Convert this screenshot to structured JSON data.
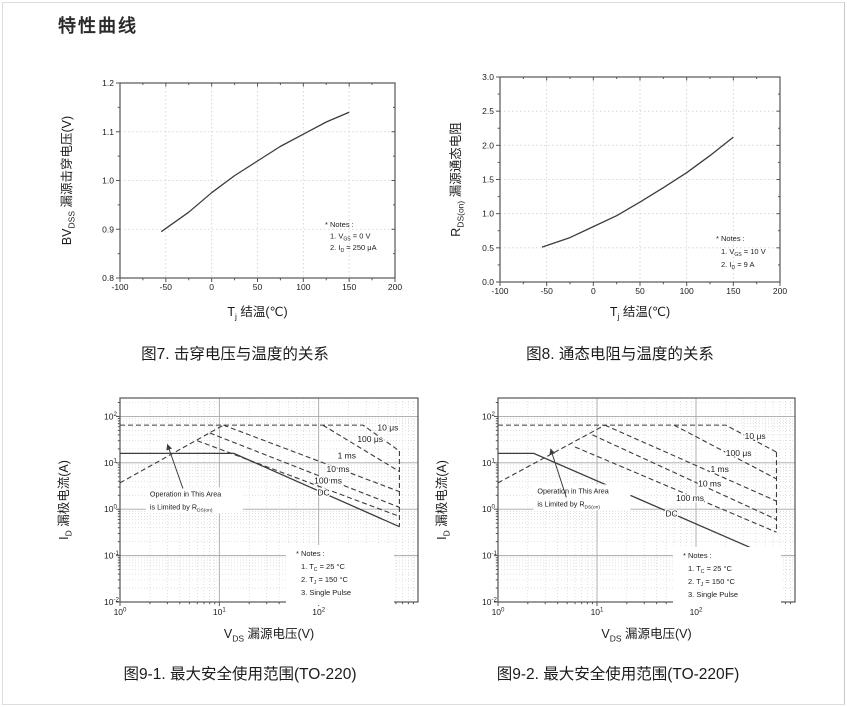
{
  "page": {
    "title": "特性曲线"
  },
  "colors": {
    "curve": "#3c3c3c",
    "frame": "#555555",
    "grid_major": "#a8a8a8",
    "grid_minor": "#cfcfcf",
    "text": "#1c1c1c"
  },
  "chart_data": [
    {
      "id": "fig7",
      "type": "line",
      "caption": "图7. 击穿电压与温度的关系",
      "xlabel": {
        "t": "T",
        "s": "j",
        "r": " 结温(℃)"
      },
      "ylabel": {
        "t": "BV",
        "s": "DSS",
        "r": " 漏源击穿电压(V)"
      },
      "xlim": [
        -100,
        200
      ],
      "ylim": [
        0.8,
        1.2
      ],
      "xticks": [
        -100,
        -50,
        0,
        50,
        100,
        150,
        200
      ],
      "ytick_labels": [
        "0.8",
        "0.9",
        "1.0",
        "1.1",
        "1.2"
      ],
      "yticks": [
        0.8,
        0.9,
        1.0,
        1.1,
        1.2
      ],
      "x": [
        -55,
        -25,
        0,
        25,
        50,
        75,
        100,
        125,
        150
      ],
      "y": [
        0.895,
        0.935,
        0.975,
        1.01,
        1.04,
        1.07,
        1.095,
        1.12,
        1.14
      ],
      "notes": [
        {
          "t": "* Notes :"
        },
        {
          "t": "1. V",
          "s": "GS",
          "r": " = 0 V"
        },
        {
          "t": "2. I",
          "s": "D",
          "r": " = 250 μA"
        }
      ]
    },
    {
      "id": "fig8",
      "type": "line",
      "caption": "图8. 通态电阻与温度的关系",
      "xlabel": {
        "t": "T",
        "s": "j",
        "r": " 结温(℃)"
      },
      "ylabel": {
        "t": "R",
        "s": "DS(on)",
        "r": " 漏源通态电阻"
      },
      "xlim": [
        -100,
        200
      ],
      "ylim": [
        0,
        3
      ],
      "xticks": [
        -100,
        -50,
        0,
        50,
        100,
        150,
        200
      ],
      "ytick_labels": [
        "0.0",
        "0.5",
        "1.0",
        "1.5",
        "2.0",
        "2.5",
        "3.0"
      ],
      "yticks": [
        0,
        0.5,
        1.0,
        1.5,
        2.0,
        2.5,
        3.0
      ],
      "x": [
        -55,
        -25,
        0,
        25,
        50,
        75,
        100,
        125,
        150
      ],
      "y": [
        0.51,
        0.65,
        0.81,
        0.97,
        1.17,
        1.38,
        1.6,
        1.85,
        2.12
      ],
      "notes": [
        {
          "t": "* Notes :"
        },
        {
          "t": "1. V",
          "s": "GS",
          "r": " = 10 V"
        },
        {
          "t": "2. I",
          "s": "D",
          "r": " = 9 A"
        }
      ]
    },
    {
      "id": "fig9_1",
      "type": "soa",
      "caption": "图9-1. 最大安全使用范围(TO-220)",
      "xlabel": {
        "t": "V",
        "s": "DS",
        "r": " 漏源电压(V)"
      },
      "ylabel": {
        "t": "I",
        "s": "D",
        "r": " 漏极电流(A)"
      },
      "xlim": [
        1,
        1000
      ],
      "ylim": [
        0.01,
        250
      ],
      "xtick_exp": [
        0,
        1,
        2
      ],
      "ytick_exp": [
        -2,
        -1,
        0,
        1,
        2
      ],
      "lines": [
        {
          "name": "rdson-limit",
          "dash": true,
          "pts": [
            [
              1,
              3.7
            ],
            [
              11,
              65
            ]
          ]
        },
        {
          "name": "pulse-10us",
          "dash": true,
          "pts": [
            [
              1,
              65
            ],
            [
              280,
              65
            ],
            [
              650,
              18
            ]
          ],
          "label": "10 μs",
          "label_at": [
            390,
            50
          ]
        },
        {
          "name": "pulse-100us",
          "dash": true,
          "pts": [
            [
              110,
              65
            ],
            [
              650,
              6.5
            ]
          ],
          "label": "100 μs",
          "label_at": [
            245,
            28
          ]
        },
        {
          "name": "pulse-1ms",
          "dash": true,
          "pts": [
            [
              11,
              65
            ],
            [
              650,
              2.4
            ]
          ],
          "label": "1 ms",
          "label_at": [
            155,
            12.5
          ]
        },
        {
          "name": "pulse-10ms",
          "dash": true,
          "pts": [
            [
              8,
              44
            ],
            [
              650,
              1.1
            ]
          ],
          "label": "10 ms",
          "label_at": [
            120,
            6.3
          ]
        },
        {
          "name": "pulse-100ms",
          "dash": true,
          "pts": [
            [
              6,
              30
            ],
            [
              650,
              0.7
            ]
          ],
          "label": "100 ms",
          "label_at": [
            90,
            3.6
          ]
        },
        {
          "name": "bv-limit",
          "dash": true,
          "pts": [
            [
              650,
              18
            ],
            [
              650,
              0.42
            ]
          ]
        },
        {
          "name": "dc",
          "dash": false,
          "pts": [
            [
              1,
              16
            ],
            [
              14,
              16
            ],
            [
              650,
              0.42
            ]
          ],
          "label": "DC",
          "label_at": [
            97,
            2.0
          ]
        }
      ],
      "annotation": {
        "lines": [
          {
            "t": "Operation in This Area"
          },
          {
            "t": "is Limited by R",
            "s": "DS(on)"
          }
        ],
        "at": [
          2,
          1.9
        ],
        "arrow": [
          [
            4.3,
            2.8
          ],
          [
            3,
            25
          ]
        ]
      },
      "notes": [
        {
          "t": "* Notes :"
        },
        {
          "t": "1. T",
          "s": "C",
          "r": " = 25 °C"
        },
        {
          "t": "2. T",
          "s": "J",
          "r": " = 150 °C"
        },
        {
          "t": "3. Single Pulse"
        }
      ]
    },
    {
      "id": "fig9_2",
      "type": "soa",
      "caption": "图9-2. 最大安全使用范围(TO-220F)",
      "xlabel": {
        "t": "V",
        "s": "DS",
        "r": " 漏源电压(V)"
      },
      "ylabel": {
        "t": "I",
        "s": "D",
        "r": " 漏极电流(A)"
      },
      "xlim": [
        1,
        1000
      ],
      "ylim": [
        0.01,
        250
      ],
      "xtick_exp": [
        0,
        1,
        2
      ],
      "ytick_exp": [
        -2,
        -1,
        0,
        1,
        2
      ],
      "lines": [
        {
          "name": "rdson-limit",
          "dash": true,
          "pts": [
            [
              1,
              3.7
            ],
            [
              12,
              65
            ]
          ]
        },
        {
          "name": "pulse-10us",
          "dash": true,
          "pts": [
            [
              1,
              65
            ],
            [
              200,
              65
            ],
            [
              650,
              17
            ]
          ],
          "label": "10 μs",
          "label_at": [
            310,
            33
          ]
        },
        {
          "name": "pulse-100us",
          "dash": true,
          "pts": [
            [
              60,
              65
            ],
            [
              650,
              4.5
            ]
          ],
          "label": "100 μs",
          "label_at": [
            200,
            14
          ]
        },
        {
          "name": "pulse-1ms",
          "dash": true,
          "pts": [
            [
              12,
              65
            ],
            [
              650,
              1.5
            ]
          ],
          "label": "1 ms",
          "label_at": [
            140,
            6.4
          ]
        },
        {
          "name": "pulse-10ms",
          "dash": true,
          "pts": [
            [
              9,
              40
            ],
            [
              650,
              0.6
            ]
          ],
          "label": "10 ms",
          "label_at": [
            105,
            3.1
          ]
        },
        {
          "name": "pulse-100ms",
          "dash": true,
          "pts": [
            [
              6,
              22
            ],
            [
              650,
              0.32
            ]
          ],
          "label": "100 ms",
          "label_at": [
            63,
            1.5
          ]
        },
        {
          "name": "bv-limit",
          "dash": true,
          "pts": [
            [
              650,
              17
            ],
            [
              650,
              0.32
            ]
          ]
        },
        {
          "name": "dc",
          "dash": false,
          "pts": [
            [
              1,
              16
            ],
            [
              2.3,
              16
            ],
            [
              650,
              0.085
            ],
            [
              650,
              0.013
            ]
          ],
          "label": "DC",
          "label_at": [
            49,
            0.7
          ]
        }
      ],
      "annotation": {
        "lines": [
          {
            "t": "Operation in This Area"
          },
          {
            "t": "is Limited by R",
            "s": "DS(on)"
          }
        ],
        "at": [
          2.5,
          2.2
        ],
        "arrow": [
          [
            4.9,
            1.8
          ],
          [
            3.4,
            20
          ]
        ]
      },
      "notes": [
        {
          "t": "* Notes :"
        },
        {
          "t": "1. T",
          "s": "C",
          "r": " = 25 °C"
        },
        {
          "t": "2. T",
          "s": "J",
          "r": " = 150 °C"
        },
        {
          "t": "3. Single Pulse"
        }
      ]
    }
  ]
}
